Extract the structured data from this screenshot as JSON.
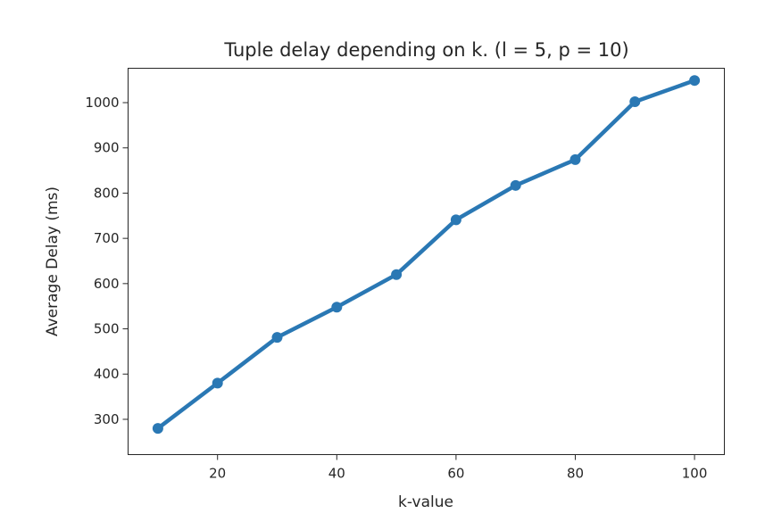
{
  "chart_data": {
    "type": "line",
    "title": "Tuple delay depending on k. (l = 5, p = 10)",
    "xlabel": "k-value",
    "ylabel": "Average Delay (ms)",
    "xlim": [
      5,
      105
    ],
    "ylim": [
      222,
      1076
    ],
    "xticks": [
      20,
      40,
      60,
      80,
      100
    ],
    "yticks": [
      300,
      400,
      500,
      600,
      700,
      800,
      900,
      1000
    ],
    "grid": false,
    "series": [
      {
        "color": "#2a78b4",
        "marker": "circle",
        "x": [
          10,
          20,
          30,
          40,
          50,
          60,
          70,
          80,
          90,
          100
        ],
        "y": [
          280,
          380,
          481,
          548,
          620,
          741,
          817,
          874,
          1002,
          1049
        ]
      }
    ]
  }
}
